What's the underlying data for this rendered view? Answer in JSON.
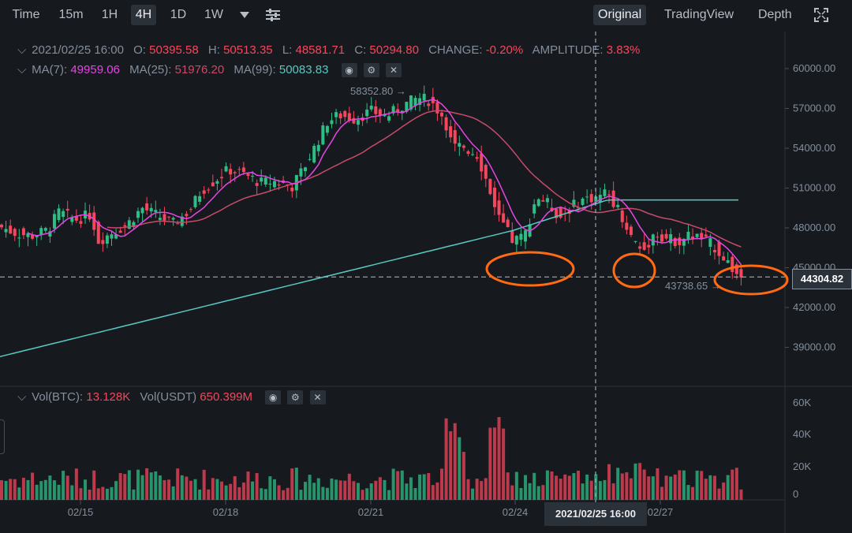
{
  "toolbar": {
    "timeframes": [
      "Time",
      "15m",
      "1H",
      "4H",
      "1D",
      "1W"
    ],
    "active_timeframe": "4H",
    "views": [
      "Original",
      "TradingView",
      "Depth"
    ],
    "active_view": "Original"
  },
  "ohlc": {
    "date": "2021/02/25 16:00",
    "o_label": "O:",
    "o": "50395.58",
    "h_label": "H:",
    "h": "50513.35",
    "l_label": "L:",
    "l": "48581.71",
    "c_label": "C:",
    "c": "50294.80",
    "change_label": "CHANGE:",
    "change": "-0.20%",
    "amp_label": "AMPLITUDE:",
    "amplitude": "3.83%"
  },
  "ma": {
    "ma7_label": "MA(7):",
    "ma7": "49959.06",
    "ma25_label": "MA(25):",
    "ma25": "51976.20",
    "ma99_label": "MA(99):",
    "ma99": "50083.83"
  },
  "vol": {
    "btc_label": "Vol(BTC):",
    "btc": "13.128K",
    "usdt_label": "Vol(USDT)",
    "usdt": "650.399M"
  },
  "price_axis": [
    "60000.00",
    "57000.00",
    "54000.00",
    "51000.00",
    "48000.00",
    "45000.00",
    "42000.00",
    "39000.00"
  ],
  "vol_axis": [
    "60K",
    "40K",
    "20K",
    "0"
  ],
  "date_axis": [
    "02/15",
    "02/18",
    "02/21",
    "02/24",
    "02/27"
  ],
  "crosshair_date": "2021/02/25 16:00",
  "current_price": "44304.82",
  "annotations": {
    "high": "58352.80",
    "low": "43738.65"
  },
  "colors": {
    "up": "#2ebd85",
    "down": "#f6465d",
    "ma7": "#e545e5",
    "ma25": "#c94a6a",
    "ma99": "#58c9c4",
    "highlight": "#ff6a13"
  }
}
